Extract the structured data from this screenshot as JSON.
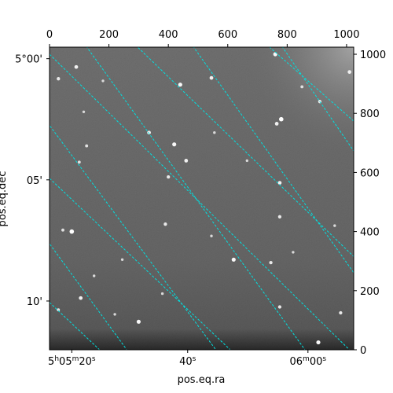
{
  "chart_data": {
    "type": "scatter",
    "description_kind": "astronomical image with WCS coordinate grid overlay",
    "xlabel": "pos.eq.ra",
    "ylabel": "pos.eq.dec",
    "pixel_axes": {
      "x_range": [
        0,
        1024
      ],
      "y_range": [
        0,
        1024
      ],
      "x_ticks": [
        "0",
        "200",
        "400",
        "600",
        "800",
        "1000"
      ],
      "y_ticks": [
        "0",
        "200",
        "400",
        "600",
        "800",
        "1000"
      ]
    },
    "world_axes": {
      "ra_ticks": [
        {
          "label_parts": [
            "5",
            "h",
            "05",
            "m",
            "20",
            "s"
          ],
          "text": "5h05m20s"
        },
        {
          "label_parts": [
            "40",
            "s"
          ],
          "text": "40s"
        },
        {
          "label_parts": [
            "06",
            "m",
            "00",
            "s"
          ],
          "text": "06m00s"
        }
      ],
      "dec_ticks": [
        "5°00'",
        "05'",
        "10'"
      ]
    },
    "grid": true,
    "grid_color": "#00e0e0",
    "image": {
      "colormap": "gray",
      "background_color": "#6a6a6a"
    },
    "stars": [
      {
        "x": 90,
        "y": 957,
        "brightness": 0.8
      },
      {
        "x": 30,
        "y": 917,
        "brightness": 0.7
      },
      {
        "x": 440,
        "y": 897,
        "brightness": 0.9
      },
      {
        "x": 545,
        "y": 920,
        "brightness": 0.8
      },
      {
        "x": 760,
        "y": 1000,
        "brightness": 0.9
      },
      {
        "x": 780,
        "y": 780,
        "brightness": 1.0
      },
      {
        "x": 765,
        "y": 765,
        "brightness": 0.8
      },
      {
        "x": 1010,
        "y": 940,
        "brightness": 0.8
      },
      {
        "x": 910,
        "y": 840,
        "brightness": 0.7
      },
      {
        "x": 335,
        "y": 735,
        "brightness": 0.8
      },
      {
        "x": 420,
        "y": 695,
        "brightness": 0.9
      },
      {
        "x": 460,
        "y": 640,
        "brightness": 0.8
      },
      {
        "x": 125,
        "y": 690,
        "brightness": 0.6
      },
      {
        "x": 100,
        "y": 635,
        "brightness": 0.6
      },
      {
        "x": 400,
        "y": 585,
        "brightness": 0.7
      },
      {
        "x": 775,
        "y": 565,
        "brightness": 0.8
      },
      {
        "x": 45,
        "y": 405,
        "brightness": 0.6
      },
      {
        "x": 75,
        "y": 400,
        "brightness": 1.0
      },
      {
        "x": 390,
        "y": 425,
        "brightness": 0.7
      },
      {
        "x": 775,
        "y": 450,
        "brightness": 0.7
      },
      {
        "x": 620,
        "y": 305,
        "brightness": 0.9
      },
      {
        "x": 745,
        "y": 295,
        "brightness": 0.7
      },
      {
        "x": 105,
        "y": 175,
        "brightness": 0.8
      },
      {
        "x": 30,
        "y": 135,
        "brightness": 0.6
      },
      {
        "x": 300,
        "y": 95,
        "brightness": 0.9
      },
      {
        "x": 775,
        "y": 145,
        "brightness": 0.7
      },
      {
        "x": 905,
        "y": 25,
        "brightness": 0.9
      },
      {
        "x": 980,
        "y": 125,
        "brightness": 0.7
      },
      {
        "x": 555,
        "y": 735,
        "brightness": 0.5
      },
      {
        "x": 850,
        "y": 890,
        "brightness": 0.6
      },
      {
        "x": 180,
        "y": 910,
        "brightness": 0.5
      },
      {
        "x": 245,
        "y": 305,
        "brightness": 0.5
      },
      {
        "x": 545,
        "y": 385,
        "brightness": 0.5
      },
      {
        "x": 115,
        "y": 805,
        "brightness": 0.5
      },
      {
        "x": 820,
        "y": 330,
        "brightness": 0.5
      },
      {
        "x": 380,
        "y": 190,
        "brightness": 0.5
      },
      {
        "x": 150,
        "y": 250,
        "brightness": 0.5
      },
      {
        "x": 665,
        "y": 640,
        "brightness": 0.5
      },
      {
        "x": 220,
        "y": 120,
        "brightness": 0.5
      },
      {
        "x": 960,
        "y": 420,
        "brightness": 0.5
      }
    ],
    "grid_lines": [
      {
        "kind": "ra",
        "points": [
          [
            -30,
            400
          ],
          [
            260,
            0
          ]
        ]
      },
      {
        "kind": "ra",
        "points": [
          [
            -30,
            800
          ],
          [
            560,
            0
          ]
        ]
      },
      {
        "kind": "ra",
        "points": [
          [
            100,
            1060
          ],
          [
            860,
            0
          ]
        ]
      },
      {
        "kind": "ra",
        "points": [
          [
            460,
            1060
          ],
          [
            1060,
            210
          ]
        ]
      },
      {
        "kind": "ra",
        "points": [
          [
            760,
            1060
          ],
          [
            1060,
            620
          ]
        ]
      },
      {
        "kind": "dec",
        "points": [
          [
            0,
            1000
          ],
          [
            1040,
            -30
          ]
        ]
      },
      {
        "kind": "dec",
        "points": [
          [
            0,
            580
          ],
          [
            640,
            -30
          ]
        ]
      },
      {
        "kind": "dec",
        "points": [
          [
            0,
            160
          ],
          [
            200,
            -30
          ]
        ]
      },
      {
        "kind": "dec",
        "points": [
          [
            260,
            1060
          ],
          [
            1040,
            300
          ]
        ]
      },
      {
        "kind": "dec",
        "points": [
          [
            700,
            1060
          ],
          [
            1040,
            760
          ]
        ]
      }
    ]
  }
}
